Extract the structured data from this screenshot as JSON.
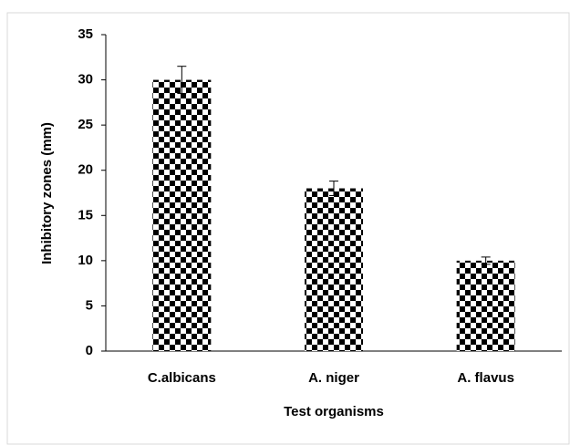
{
  "chart_data": {
    "type": "bar",
    "categories": [
      "C.albicans",
      "A. niger",
      "A. flavus"
    ],
    "values": [
      30,
      18,
      10
    ],
    "errors": [
      1.5,
      0.8,
      0.4
    ],
    "color": "#000000",
    "xlabel": "Test organisms",
    "ylabel": "Inhibitory zones (mm)",
    "ylim": [
      0,
      35
    ],
    "yticks": [
      0,
      5,
      10,
      15,
      20,
      25,
      30,
      35
    ],
    "grid": false
  }
}
